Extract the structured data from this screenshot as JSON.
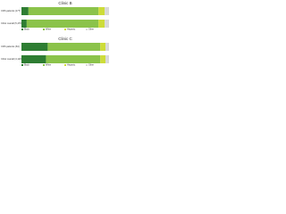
{
  "chart_data": [
    {
      "type": "bar",
      "orientation": "horizontal",
      "stacked": true,
      "title": "Clinic B",
      "categories": [
        "CRS patients (177)",
        "Clinic overall (5,470)"
      ],
      "series": [
        {
          "name": "Black",
          "color": "#2e7d32",
          "values": [
            8,
            6
          ]
        },
        {
          "name": "White",
          "color": "#8bc34a",
          "values": [
            80,
            82
          ]
        },
        {
          "name": "Hispanic",
          "color": "#cddc39",
          "values": [
            7,
            7
          ]
        },
        {
          "name": "Other",
          "color": "#d9d9d9",
          "values": [
            5,
            5
          ]
        }
      ],
      "xlim": [
        0,
        100
      ]
    },
    {
      "type": "bar",
      "orientation": "horizontal",
      "stacked": true,
      "title": "Clinic C",
      "categories": [
        "CRS patients (64)",
        "Clinic overall (4,120)"
      ],
      "series": [
        {
          "name": "Black",
          "color": "#2e7d32",
          "values": [
            30,
            28
          ]
        },
        {
          "name": "White",
          "color": "#8bc34a",
          "values": [
            60,
            62
          ]
        },
        {
          "name": "Hispanic",
          "color": "#cddc39",
          "values": [
            6,
            6
          ]
        },
        {
          "name": "Other",
          "color": "#d9d9d9",
          "values": [
            4,
            4
          ]
        }
      ],
      "xlim": [
        0,
        100
      ]
    }
  ]
}
